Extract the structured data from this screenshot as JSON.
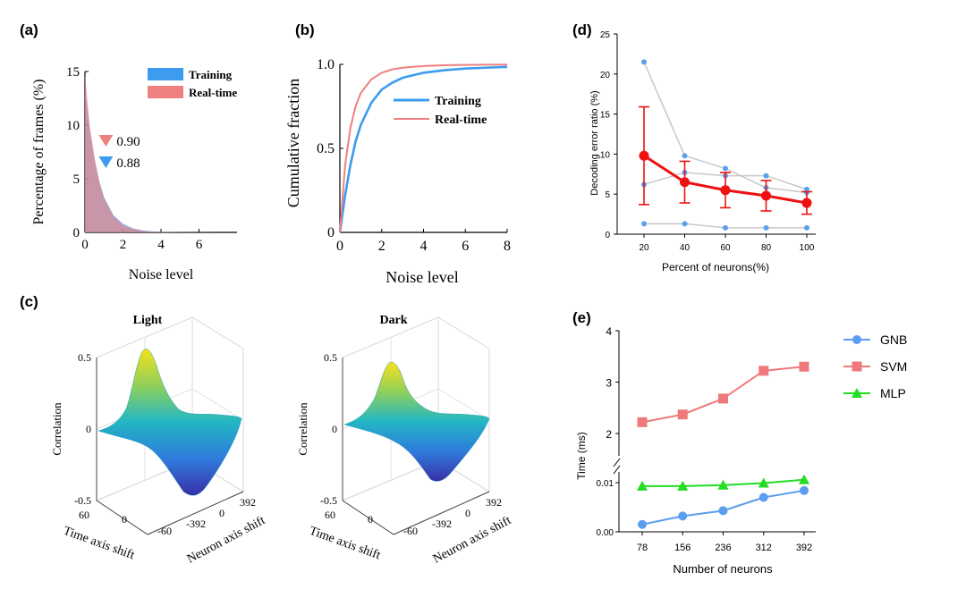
{
  "panels": {
    "a": "(a)",
    "b": "(b)",
    "c": "(c)",
    "d": "(d)",
    "e": "(e)"
  },
  "colors": {
    "training": "#3d9cf0",
    "realtime": "#f08080",
    "overlap": "#8a5a95",
    "red": "#ee1111",
    "blue_dot": "#5aa0ee",
    "gray_line": "#c8c8c8",
    "gnb": "#5b9ef0",
    "svm": "#f0787a",
    "mlp": "#22dd22"
  },
  "chart_data": [
    {
      "id": "a",
      "type": "area",
      "xlabel": "Noise level",
      "ylabel": "Percentage of frames (%)",
      "xticks": [
        "0",
        "2",
        "4",
        "6"
      ],
      "yticks": [
        "0",
        "5",
        "10",
        "15"
      ],
      "xlim": [
        0,
        8
      ],
      "ylim": [
        0,
        15
      ],
      "legend": [
        "Training",
        "Real-time"
      ],
      "series": [
        {
          "name": "Training",
          "x": [
            0,
            0.25,
            0.5,
            0.75,
            1,
            1.5,
            2,
            2.5,
            3,
            3.5,
            4,
            5,
            6,
            7,
            8
          ],
          "values": [
            13.5,
            9.5,
            6.8,
            4.8,
            3.3,
            1.6,
            0.8,
            0.4,
            0.2,
            0.1,
            0.05,
            0.02,
            0.01,
            0,
            0
          ]
        },
        {
          "name": "Real-time",
          "x": [
            0,
            0.25,
            0.5,
            0.75,
            1,
            1.5,
            2,
            2.5,
            3,
            3.5,
            4,
            5,
            6,
            7,
            8
          ],
          "values": [
            14.8,
            10,
            7,
            4.8,
            3.2,
            1.5,
            0.7,
            0.35,
            0.15,
            0.08,
            0.04,
            0.02,
            0.01,
            0,
            0
          ]
        }
      ],
      "annotations": [
        {
          "label": "0.90",
          "x": 0.9,
          "series": "Real-time"
        },
        {
          "label": "0.88",
          "x": 0.88,
          "series": "Training"
        }
      ]
    },
    {
      "id": "b",
      "type": "line",
      "xlabel": "Noise level",
      "ylabel": "Cumulative fraction",
      "xticks": [
        "0",
        "2",
        "4",
        "6",
        "8"
      ],
      "yticks": [
        "0",
        "0.5",
        "1.0"
      ],
      "xlim": [
        0,
        8
      ],
      "ylim": [
        0,
        1
      ],
      "legend": [
        "Training",
        "Real-time"
      ],
      "series": [
        {
          "name": "Training",
          "x": [
            0,
            0.25,
            0.5,
            0.75,
            1,
            1.5,
            2,
            2.5,
            3,
            4,
            5,
            6,
            7,
            8
          ],
          "values": [
            0,
            0.22,
            0.4,
            0.54,
            0.64,
            0.77,
            0.85,
            0.89,
            0.92,
            0.95,
            0.965,
            0.975,
            0.98,
            0.985
          ]
        },
        {
          "name": "Real-time",
          "x": [
            0,
            0.25,
            0.5,
            0.75,
            1,
            1.5,
            2,
            2.5,
            3,
            4,
            5,
            6,
            7,
            8
          ],
          "values": [
            0,
            0.4,
            0.62,
            0.75,
            0.83,
            0.91,
            0.95,
            0.97,
            0.98,
            0.99,
            0.995,
            0.997,
            0.998,
            0.999
          ]
        }
      ]
    },
    {
      "id": "c-light",
      "type": "surface",
      "title": "Light",
      "zlabel": "Correlation",
      "xlabel": "Time axis shift",
      "ylabel": "Neuron axis shift",
      "zticks": [
        "0.5",
        "0",
        "-0.5"
      ],
      "xticks": [
        "60",
        "0",
        "-60"
      ],
      "yticks": [
        "392",
        "0",
        "-392"
      ],
      "zlim": [
        -0.5,
        0.5
      ],
      "peak": 0.5,
      "trough": -0.5
    },
    {
      "id": "c-dark",
      "type": "surface",
      "title": "Dark",
      "zlabel": "Correlation",
      "xlabel": "Time axis shift",
      "ylabel": "Neuron axis shift",
      "zticks": [
        "0.5",
        "0",
        "-0.5"
      ],
      "xticks": [
        "60",
        "0",
        "-60"
      ],
      "yticks": [
        "392",
        "0",
        "-392"
      ],
      "zlim": [
        -0.5,
        0.5
      ],
      "peak": 0.42,
      "trough": -0.42
    },
    {
      "id": "d",
      "type": "line",
      "xlabel": "Percent of neurons(%)",
      "ylabel": "Decoding error ratio (%)",
      "categories": [
        "20",
        "40",
        "60",
        "80",
        "100"
      ],
      "yticks": [
        "0",
        "5",
        "10",
        "15",
        "20",
        "25"
      ],
      "ylim": [
        0,
        25
      ],
      "mean": {
        "values": [
          9.8,
          6.5,
          5.5,
          4.8,
          3.9
        ],
        "err": [
          6.1,
          2.6,
          2.2,
          1.9,
          1.4
        ]
      },
      "individual": [
        {
          "values": [
            21.5,
            9.8,
            8.2,
            5.8,
            5.2
          ]
        },
        {
          "values": [
            6.2,
            7.7,
            7.3,
            7.3,
            5.6
          ]
        },
        {
          "values": [
            1.3,
            1.3,
            0.8,
            0.8,
            0.8
          ]
        }
      ]
    },
    {
      "id": "e",
      "type": "line",
      "xlabel": "Number of neurons",
      "ylabel": "Time (ms)",
      "categories": [
        "78",
        "156",
        "236",
        "312",
        "392"
      ],
      "yticks_upper": [
        "2",
        "3",
        "4"
      ],
      "yticks_lower": [
        "0.00",
        "0.01"
      ],
      "series": [
        {
          "name": "GNB",
          "values": [
            0.0015,
            0.0032,
            0.0043,
            0.007,
            0.0084
          ]
        },
        {
          "name": "SVM",
          "values": [
            2.22,
            2.37,
            2.68,
            3.22,
            3.3
          ]
        },
        {
          "name": "MLP",
          "values": [
            0.0093,
            0.0093,
            0.0095,
            0.0099,
            0.0106
          ]
        }
      ]
    }
  ]
}
